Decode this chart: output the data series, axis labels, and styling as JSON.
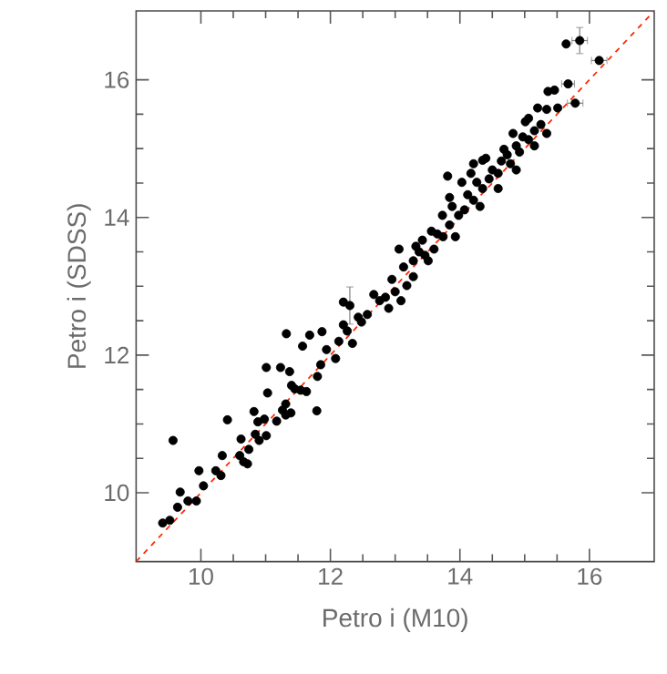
{
  "chart_data": {
    "type": "scatter",
    "xlabel": "Petro i (M10)",
    "ylabel": "Petro i (SDSS)",
    "xlim": [
      9,
      17
    ],
    "ylim": [
      9,
      17
    ],
    "xticks": [
      10,
      12,
      14,
      16
    ],
    "yticks": [
      10,
      12,
      14,
      16
    ],
    "grid": false,
    "series": [
      {
        "color": "#000000",
        "marker": "circle",
        "x": [
          9.41,
          9.52,
          9.57,
          9.64,
          9.68,
          9.8,
          9.93,
          9.97,
          10.04,
          10.23,
          10.31,
          10.33,
          10.41,
          10.6,
          10.66,
          10.72,
          10.62,
          10.74,
          10.84,
          10.9,
          11.01,
          10.82,
          10.88,
          10.98,
          11.01,
          11.03,
          11.17,
          11.26,
          11.31,
          11.4,
          11.32,
          11.23,
          11.37,
          11.31,
          11.39,
          11.45,
          11.54,
          11.63,
          11.57,
          11.68,
          11.79,
          11.8,
          11.85,
          11.94,
          11.87,
          12.08,
          12.13,
          12.2,
          12.26,
          12.34,
          12.2,
          12.43,
          12.48,
          12.57,
          12.67,
          12.76,
          12.85,
          12.9,
          13.0,
          12.95,
          13.09,
          13.18,
          13.28,
          13.06,
          13.13,
          13.28,
          13.37,
          13.46,
          13.6,
          13.65,
          13.74,
          13.84,
          13.73,
          13.88,
          13.98,
          14.07,
          14.12,
          14.21,
          14.26,
          14.35,
          14.45,
          14.5,
          14.59,
          14.64,
          14.73,
          14.78,
          14.87,
          14.92,
          14.97,
          15.06,
          15.01,
          15.06,
          15.15,
          15.25,
          14.21,
          14.03,
          13.84,
          14.17,
          14.4,
          14.68,
          14.82,
          13.56,
          13.42,
          13.32,
          13.51,
          13.93,
          14.31,
          14.59,
          14.87,
          15.15,
          15.34,
          13.81,
          14.35,
          15.64,
          15.36,
          15.46,
          15.2,
          15.34,
          15.51
        ],
        "values": [
          9.56,
          9.6,
          10.76,
          9.79,
          10.01,
          9.88,
          9.88,
          10.32,
          10.1,
          10.32,
          10.25,
          10.54,
          11.06,
          10.54,
          10.45,
          10.42,
          10.78,
          10.63,
          10.85,
          10.76,
          10.83,
          11.18,
          11.03,
          11.07,
          11.82,
          11.45,
          11.04,
          11.2,
          11.29,
          11.56,
          12.31,
          11.82,
          11.76,
          11.13,
          11.16,
          11.51,
          11.49,
          11.47,
          12.13,
          12.29,
          11.19,
          11.69,
          11.86,
          12.08,
          12.34,
          11.95,
          12.2,
          12.44,
          12.35,
          12.17,
          12.77,
          12.55,
          12.48,
          12.59,
          12.88,
          12.79,
          12.84,
          12.68,
          12.92,
          13.1,
          12.79,
          13.01,
          13.14,
          13.54,
          13.28,
          13.37,
          13.5,
          13.45,
          13.54,
          13.76,
          13.72,
          13.89,
          14.03,
          14.16,
          14.03,
          14.11,
          14.33,
          14.25,
          14.51,
          14.42,
          14.56,
          14.69,
          14.64,
          14.82,
          14.91,
          14.78,
          15.04,
          14.95,
          15.17,
          15.13,
          15.39,
          15.44,
          15.26,
          15.35,
          14.78,
          14.51,
          14.29,
          14.64,
          14.86,
          14.99,
          15.22,
          13.8,
          13.67,
          13.58,
          13.37,
          13.72,
          14.16,
          14.42,
          14.69,
          15.04,
          15.22,
          14.6,
          14.83,
          16.52,
          15.83,
          15.85,
          15.59,
          15.57,
          15.59
        ]
      },
      {
        "color": "#000000",
        "marker": "circle",
        "x": [
          15.85,
          16.15,
          15.67,
          15.78,
          12.3
        ],
        "values": [
          16.57,
          16.28,
          15.94,
          15.66,
          12.72
        ],
        "xerrors": [
          0.12,
          0.12,
          0.1,
          0.12,
          null
        ],
        "errors": [
          0.19,
          null,
          null,
          null,
          0.27
        ]
      },
      {
        "type": "line",
        "color": "#ff2a00",
        "line_style": "dashed",
        "marker": "none",
        "x": [
          9,
          17
        ],
        "values": [
          9,
          17
        ]
      }
    ]
  }
}
